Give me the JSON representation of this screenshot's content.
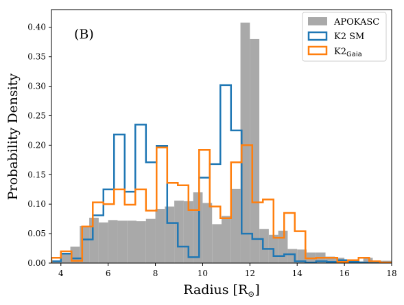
{
  "chart_data": {
    "type": "histogram",
    "panel_label": "(B)",
    "xlabel": "Radius [R",
    "xlabel_symbol": "⊙",
    "xlabel_close": "]",
    "ylabel": "Probability Density",
    "xlim": [
      3.6,
      18
    ],
    "ylim": [
      0,
      0.43
    ],
    "xticks": [
      4,
      6,
      8,
      10,
      12,
      14,
      16,
      18
    ],
    "yticks": [
      0.0,
      0.05,
      0.1,
      0.15,
      0.2,
      0.25,
      0.3,
      0.35,
      0.4
    ],
    "ytick_labels": [
      "0.00",
      "0.05",
      "0.10",
      "0.15",
      "0.20",
      "0.25",
      "0.30",
      "0.35",
      "0.40"
    ],
    "legend_position": "top-right",
    "series": [
      {
        "name": "APOKASC",
        "style": "filled",
        "color": "#a9a9a9",
        "bin_start": 3.6,
        "bin_width": 0.4,
        "values": [
          0.002,
          0.015,
          0.028,
          0.063,
          0.077,
          0.069,
          0.073,
          0.072,
          0.072,
          0.071,
          0.075,
          0.092,
          0.096,
          0.106,
          0.105,
          0.12,
          0.102,
          0.066,
          0.08,
          0.126,
          0.408,
          0.38,
          0.058,
          0.048,
          0.055,
          0.024,
          0.023,
          0.018,
          0.018,
          0.011,
          0.009,
          0.005,
          0.003,
          0.009,
          0.004,
          0.004,
          0.004,
          0.006,
          0.003,
          0.002,
          0.003
        ]
      },
      {
        "name": "K2 SM",
        "style": "step",
        "color": "#1f77b4",
        "bin_edges": [
          3.6,
          4.0,
          4.45,
          4.9,
          5.35,
          5.8,
          6.25,
          6.7,
          7.15,
          7.6,
          8.05,
          8.5,
          8.95,
          9.4,
          9.85,
          10.3,
          10.75,
          11.2,
          11.65,
          12.1,
          12.55,
          13.0,
          13.45,
          13.9,
          14.35,
          14.8,
          15.25,
          15.7,
          16.15,
          16.6,
          17.05,
          17.5,
          18.0
        ],
        "values": [
          0.003,
          0.016,
          0.008,
          0.04,
          0.081,
          0.125,
          0.218,
          0.121,
          0.235,
          0.171,
          0.199,
          0.068,
          0.028,
          0.01,
          0.145,
          0.168,
          0.302,
          0.225,
          0.05,
          0.041,
          0.024,
          0.012,
          0.015,
          0.003,
          0.001,
          0.003,
          0.002,
          0.005,
          0.002,
          0.001,
          0.001,
          0.001
        ]
      },
      {
        "name": "K2",
        "subscript": "Gaia",
        "style": "step",
        "color": "#ff7f0e",
        "bin_edges": [
          3.6,
          4.0,
          4.45,
          4.9,
          5.35,
          5.8,
          6.25,
          6.7,
          7.15,
          7.6,
          8.05,
          8.5,
          8.95,
          9.4,
          9.85,
          10.3,
          10.75,
          11.2,
          11.65,
          12.1,
          12.55,
          13.0,
          13.45,
          13.9,
          14.35,
          14.8,
          15.25,
          15.7,
          16.15,
          16.6,
          17.05,
          17.5,
          18.0
        ],
        "values": [
          0.009,
          0.02,
          0.004,
          0.062,
          0.103,
          0.1,
          0.125,
          0.099,
          0.125,
          0.089,
          0.196,
          0.136,
          0.132,
          0.09,
          0.192,
          0.096,
          0.076,
          0.171,
          0.2,
          0.103,
          0.108,
          0.043,
          0.085,
          0.054,
          0.008,
          0.009,
          0.009,
          0.002,
          0.005,
          0.009,
          0.003,
          0.001
        ]
      }
    ]
  }
}
